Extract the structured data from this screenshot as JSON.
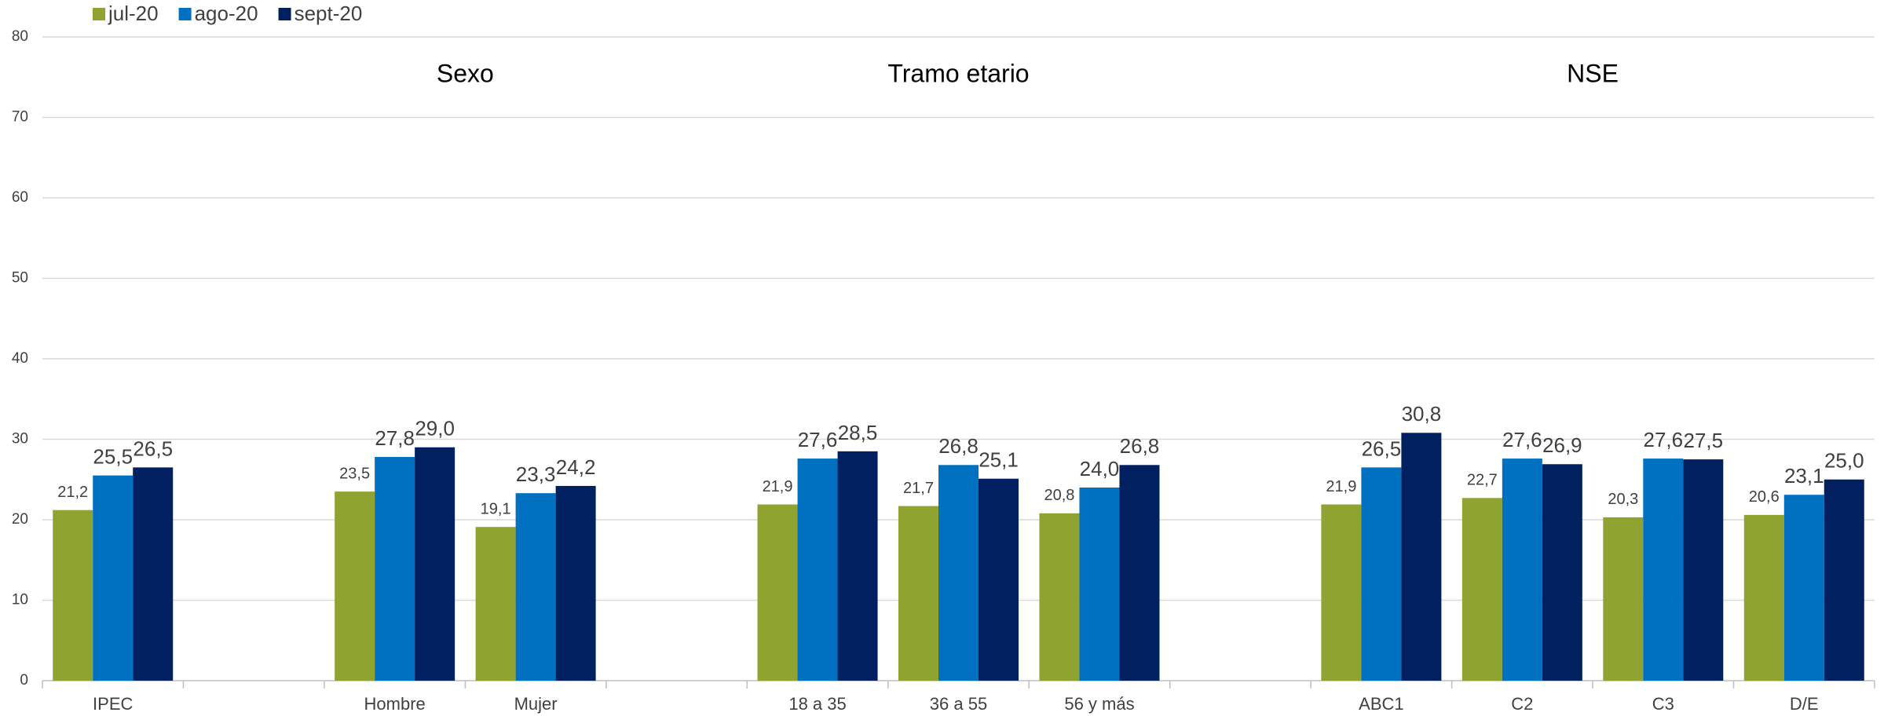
{
  "chart_data": {
    "type": "bar",
    "categories": [
      "IPEC",
      null,
      "Hombre",
      "Mujer",
      null,
      "18 a 35",
      "36 a 55",
      "56 y más",
      null,
      "ABC1",
      "C2",
      "C3",
      "D/E"
    ],
    "series": [
      {
        "name": "jul-20",
        "color": "#8ea330",
        "values": [
          21.2,
          null,
          23.5,
          19.1,
          null,
          21.9,
          21.7,
          20.8,
          null,
          21.9,
          22.7,
          20.3,
          20.6
        ],
        "value_labels": [
          "21,2",
          null,
          "23,5",
          "19,1",
          null,
          "21,9",
          "21,7",
          "20,8",
          null,
          "21,9",
          "22,7",
          "20,3",
          "20,6"
        ]
      },
      {
        "name": "ago-20",
        "color": "#0070c0",
        "values": [
          25.5,
          null,
          27.8,
          23.3,
          null,
          27.6,
          26.8,
          24.0,
          null,
          26.5,
          27.6,
          27.6,
          23.1
        ],
        "value_labels": [
          "25,5",
          null,
          "27,8",
          "23,3",
          null,
          "27,6",
          "26,8",
          "24,0",
          null,
          "26,5",
          "27,6",
          "27,6",
          "23,1"
        ]
      },
      {
        "name": "sept-20",
        "color": "#002060",
        "values": [
          26.5,
          null,
          29.0,
          24.2,
          null,
          28.5,
          25.1,
          26.8,
          null,
          30.8,
          26.9,
          27.5,
          25.0
        ],
        "value_labels": [
          "26,5",
          null,
          "29,0",
          "24,2",
          null,
          "28,5",
          "25,1",
          "26,8",
          null,
          "30,8",
          "26,9",
          "27,5",
          "25,0"
        ]
      }
    ],
    "annotations": [
      "Sexo",
      "Tramo etario",
      "NSE"
    ],
    "ylim": [
      0,
      80
    ],
    "yticks": [
      0,
      10,
      20,
      30,
      40,
      50,
      60,
      70,
      80
    ],
    "grid": true,
    "legend": "top-left"
  }
}
